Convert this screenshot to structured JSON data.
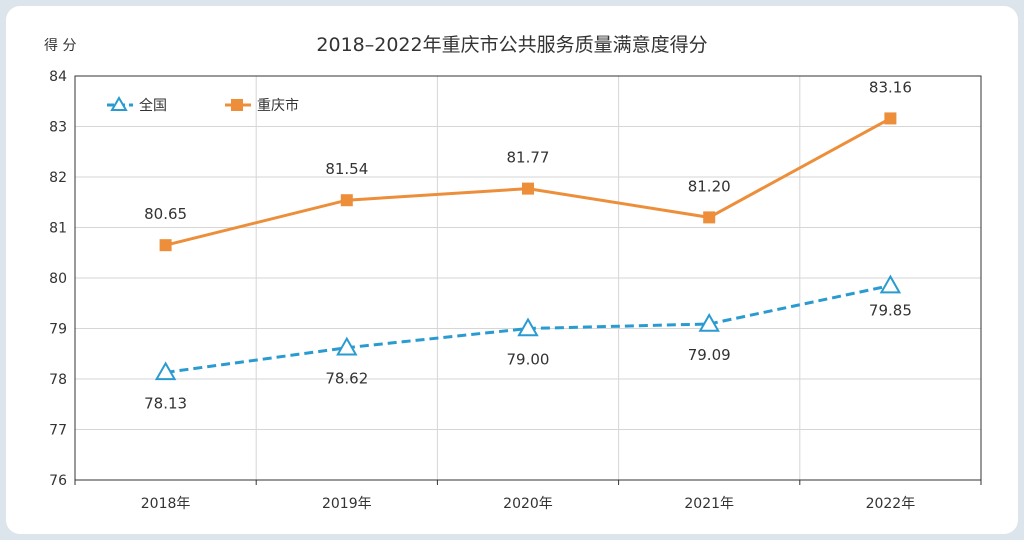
{
  "chart_data": {
    "type": "line",
    "title": "2018–2022年重庆市公共服务质量满意度得分",
    "ylabel": "得 分",
    "xlabel": "",
    "categories": [
      "2018年",
      "2019年",
      "2020年",
      "2021年",
      "2022年"
    ],
    "ylim": [
      76,
      84
    ],
    "yticks": [
      76,
      77,
      78,
      79,
      80,
      81,
      82,
      83,
      84
    ],
    "grid": true,
    "legend_position": "top-left",
    "series": [
      {
        "name": "全国",
        "values": [
          78.13,
          78.62,
          79.0,
          79.09,
          79.85
        ],
        "labels": [
          "78.13",
          "78.62",
          "79.00",
          "79.09",
          "79.85"
        ],
        "color": "#2a9bd0",
        "marker": "triangle",
        "line_style": "dashed"
      },
      {
        "name": "重庆市",
        "values": [
          80.65,
          81.54,
          81.77,
          81.2,
          83.16
        ],
        "labels": [
          "80.65",
          "81.54",
          "81.77",
          "81.20",
          "83.16"
        ],
        "color": "#ec8e3a",
        "marker": "square",
        "line_style": "solid"
      }
    ]
  }
}
